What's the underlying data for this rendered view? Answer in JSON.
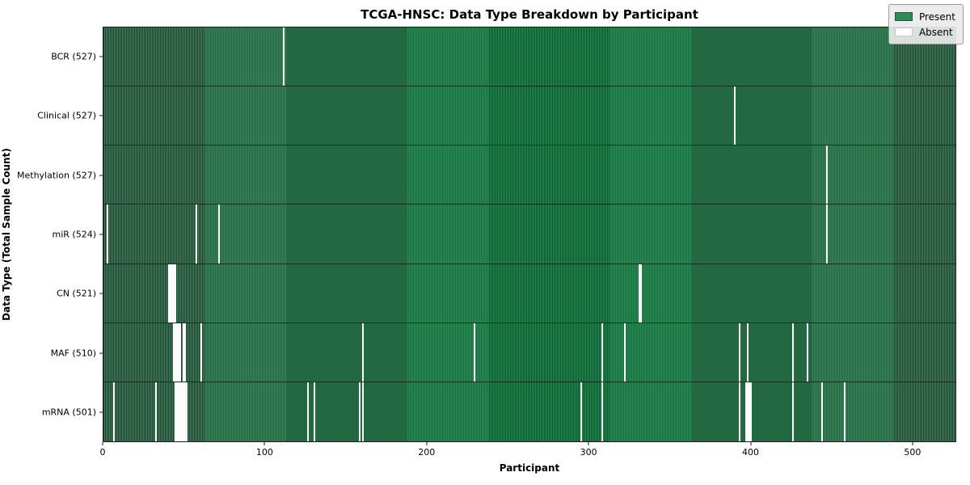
{
  "title": "TCGA-HNSC: Data Type Breakdown by Participant",
  "xlabel": "Participant",
  "ylabel": "Data Type (Total Sample Count)",
  "legend": {
    "present_label": "Present",
    "absent_label": "Absent"
  },
  "colors": {
    "present": "#2e8b57",
    "present_edge": "#17472c",
    "absent": "#fbfbfb",
    "legend_bg": "#eaeaea"
  },
  "chart_data": {
    "type": "heatmap",
    "title": "TCGA-HNSC: Data Type Breakdown by Participant",
    "xlabel": "Participant",
    "ylabel": "Data Type (Total Sample Count)",
    "x_range": [
      0,
      527
    ],
    "x_ticks": [
      0,
      100,
      200,
      300,
      400,
      500
    ],
    "n_participants": 527,
    "legend_entries": [
      "Present",
      "Absent"
    ],
    "legend_position": "upper right",
    "grid": false,
    "rows": [
      {
        "label": "BCR (527)",
        "data_type": "BCR",
        "total_samples": 527,
        "absent_participants": [
          111
        ]
      },
      {
        "label": "Clinical (527)",
        "data_type": "Clinical",
        "total_samples": 527,
        "absent_participants": [
          390
        ]
      },
      {
        "label": "Methylation (527)",
        "data_type": "Methylation",
        "total_samples": 527,
        "absent_participants": [
          447
        ]
      },
      {
        "label": "miR (524)",
        "data_type": "miR",
        "total_samples": 524,
        "absent_participants": [
          2,
          57,
          71,
          447
        ]
      },
      {
        "label": "CN (521)",
        "data_type": "CN",
        "total_samples": 521,
        "absent_participants": [
          40,
          41,
          42,
          43,
          44,
          331,
          332
        ]
      },
      {
        "label": "MAF (510)",
        "data_type": "MAF",
        "total_samples": 510,
        "absent_participants": [
          43,
          44,
          45,
          46,
          47,
          49,
          50,
          60,
          160,
          229,
          308,
          322,
          393,
          398,
          426,
          435
        ]
      },
      {
        "label": "mRNA (501)",
        "data_type": "mRNA",
        "total_samples": 501,
        "absent_participants": [
          6,
          32,
          44,
          45,
          46,
          47,
          48,
          49,
          50,
          51,
          126,
          130,
          158,
          160,
          295,
          308,
          393,
          397,
          398,
          399,
          400,
          426,
          444,
          458
        ]
      }
    ]
  }
}
